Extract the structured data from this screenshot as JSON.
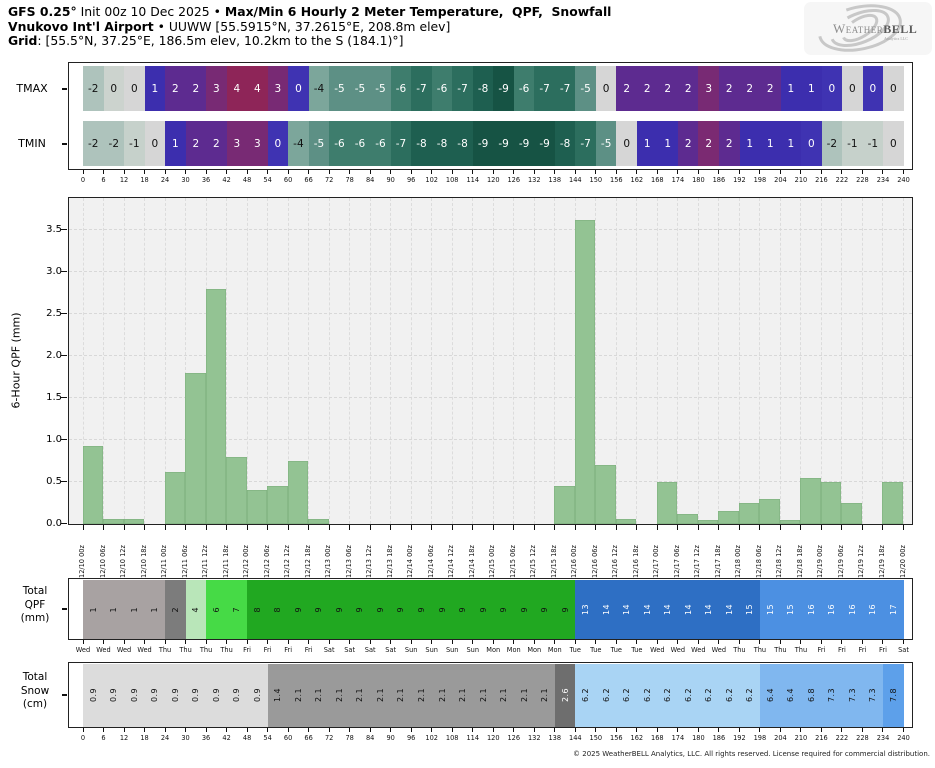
{
  "header": {
    "line1_bold": "GFS 0.25°",
    "line1_mid": " Init 00z 10 Dec 2025 • ",
    "line1_bold2": "Max/Min 6 Hourly 2 Meter Temperature,  QPF,  Snowfall",
    "line2_bold": "Vnukovo Int'l Airport",
    "line2_rest": " • UUWW [55.5915°N, 37.2615°E, 208.8m elev]",
    "line3_bold": "Grid",
    "line3_rest": ": [55.5°N, 37.25°E, 186.5m elev, 10.2km to the S (184.1)°]"
  },
  "logo": {
    "word_main": "Weather",
    "word_bold": "BELL",
    "sub": "Analytics LLC"
  },
  "temp_rows": [
    {
      "label": "TMAX",
      "values": [
        -2,
        0,
        0,
        1,
        2,
        2,
        3,
        4,
        4,
        3,
        0,
        -4,
        -5,
        -5,
        -5,
        -6,
        -7,
        -6,
        -7,
        -8,
        -9,
        -6,
        -7,
        -7,
        -5,
        0,
        2,
        2,
        2,
        2,
        3,
        2,
        2,
        2,
        1,
        1,
        0,
        0,
        0,
        0
      ],
      "colors": [
        "#aec3bc",
        "#ccd3ce",
        "#d6d6d6",
        "#3c2eae",
        "#5d2b90",
        "#5d2b90",
        "#782a74",
        "#8e2558",
        "#8e2558",
        "#782a74",
        "#3f33b2",
        "#7ca69b",
        "#5d9085",
        "#5d9085",
        "#5d9085",
        "#3e7d6d",
        "#2c6e5e",
        "#3e7d6d",
        "#2c6e5e",
        "#1e5f50",
        "#165344",
        "#3e7d6d",
        "#2c6e5e",
        "#2c6e5e",
        "#5d9085",
        "#d6d6d6",
        "#5d2b90",
        "#5d2b90",
        "#5d2b90",
        "#5d2b90",
        "#782a74",
        "#5d2b90",
        "#5d2b90",
        "#5d2b90",
        "#3c2eae",
        "#3c2eae",
        "#3f33b2",
        "#d6d6d6",
        "#3f33b2",
        "#d6d6d6"
      ],
      "text": "kkkwwwwwwwwkwwwwwwwwwwwwwkwwwwwwwwwwwkwk"
    },
    {
      "label": "TMIN",
      "values": [
        -2,
        -2,
        -1,
        0,
        1,
        2,
        2,
        3,
        3,
        0,
        -4,
        -5,
        -6,
        -6,
        -6,
        -7,
        -8,
        -8,
        -8,
        -9,
        -9,
        -9,
        -9,
        -8,
        -7,
        -5,
        0,
        1,
        1,
        2,
        2,
        2,
        1,
        1,
        1,
        0,
        -2,
        -1,
        -1,
        0
      ],
      "colors": [
        "#aec3bc",
        "#aec3bc",
        "#c6d1cb",
        "#d6d6d6",
        "#3c2eae",
        "#5d2b90",
        "#5d2b90",
        "#782a74",
        "#782a74",
        "#3f33b2",
        "#7ca69b",
        "#5d9085",
        "#3e7d6d",
        "#3e7d6d",
        "#3e7d6d",
        "#2c6e5e",
        "#1e5f50",
        "#1e5f50",
        "#1e5f50",
        "#165344",
        "#165344",
        "#165344",
        "#165344",
        "#1e5f50",
        "#2c6e5e",
        "#5d9085",
        "#d6d6d6",
        "#3c2eae",
        "#3c2eae",
        "#5d2b90",
        "#7b2a72",
        "#5d2b90",
        "#3c2eae",
        "#3c2eae",
        "#3c2eae",
        "#3f33b2",
        "#aec3bc",
        "#c6d1cb",
        "#c6d1cb",
        "#d6d6d6"
      ],
      "text": "kkkkwwwwwwkwwwwwwwwwwwwwwwkwwwwwwwwwkkkk"
    }
  ],
  "hour_ticks": [
    0,
    6,
    12,
    18,
    24,
    30,
    36,
    42,
    48,
    54,
    60,
    66,
    72,
    78,
    84,
    90,
    96,
    102,
    108,
    114,
    120,
    126,
    132,
    138,
    144,
    150,
    156,
    162,
    168,
    174,
    180,
    186,
    192,
    198,
    204,
    210,
    216,
    222,
    228,
    234,
    240
  ],
  "chart_data": {
    "type": "bar",
    "title": "GFS 0.25° Max/Min 6 Hourly 2 Meter Temperature, QPF, Snowfall — Vnukovo Int'l Airport",
    "ylabel": "6-Hour QPF (mm)",
    "bar_color": "#93c393",
    "plot_bg": "#f1f1f1",
    "ylim": [
      0,
      3.9
    ],
    "yticks": [
      "0.0",
      "0.5",
      "1.0",
      "1.5",
      "2.0",
      "2.5",
      "3.0",
      "3.5"
    ],
    "x_labels": [
      "12/10 00z",
      "12/10 06z",
      "12/10 12z",
      "12/10 18z",
      "12/11 00z",
      "12/11 06z",
      "12/11 12z",
      "12/11 18z",
      "12/12 00z",
      "12/12 06z",
      "12/12 12z",
      "12/12 18z",
      "12/13 00z",
      "12/13 06z",
      "12/13 12z",
      "12/13 18z",
      "12/14 00z",
      "12/14 06z",
      "12/14 12z",
      "12/14 18z",
      "12/15 00z",
      "12/15 06z",
      "12/15 12z",
      "12/15 18z",
      "12/16 00z",
      "12/16 06z",
      "12/16 12z",
      "12/16 18z",
      "12/17 00z",
      "12/17 06z",
      "12/17 12z",
      "12/17 18z",
      "12/18 00z",
      "12/18 06z",
      "12/18 12z",
      "12/18 18z",
      "12/19 00z",
      "12/19 06z",
      "12/19 12z",
      "12/19 18z",
      "12/20 00z"
    ],
    "values": [
      0.93,
      0.06,
      0.06,
      0,
      0.62,
      1.8,
      2.8,
      0.8,
      0.4,
      0.45,
      0.75,
      0.06,
      0,
      0,
      0,
      0,
      0,
      0,
      0,
      0,
      0,
      0,
      0,
      0.45,
      3.62,
      0.7,
      0.06,
      0,
      0.5,
      0.12,
      0.05,
      0.15,
      0.25,
      0.3,
      0.05,
      0.55,
      0.5,
      0.25,
      0,
      0.5
    ]
  },
  "qpf_total": {
    "label_lines": [
      "Total",
      "QPF",
      "(mm)"
    ],
    "values": [
      "1",
      "1",
      "1",
      "1",
      "2",
      "4",
      "6",
      "7",
      "8",
      "8",
      "9",
      "9",
      "9",
      "9",
      "9",
      "9",
      "9",
      "9",
      "9",
      "9",
      "9",
      "9",
      "9",
      "9",
      "13",
      "14",
      "14",
      "14",
      "14",
      "14",
      "14",
      "14",
      "15",
      "15",
      "15",
      "16",
      "16",
      "16",
      "16",
      "17"
    ],
    "colors": [
      "#a8a2a2",
      "#a8a2a2",
      "#a8a2a2",
      "#a8a2a2",
      "#7c7c7c",
      "#b9e6b9",
      "#46da46",
      "#46da46",
      "#21a821",
      "#21a821",
      "#21a821",
      "#21a821",
      "#21a821",
      "#21a821",
      "#21a821",
      "#21a821",
      "#21a821",
      "#21a821",
      "#21a821",
      "#21a821",
      "#21a821",
      "#21a821",
      "#21a821",
      "#21a821",
      "#2e6fc4",
      "#2e6fc4",
      "#2e6fc4",
      "#2e6fc4",
      "#2e6fc4",
      "#2e6fc4",
      "#2e6fc4",
      "#2e6fc4",
      "#2e6fc4",
      "#4c90e2",
      "#4c90e2",
      "#4c90e2",
      "#4c90e2",
      "#4c90e2",
      "#4c90e2",
      "#4c90e2"
    ],
    "text": "kkkkkkkkkkkkkkkkkkkkkkkkwwwwwwwwwwwwwwww"
  },
  "day_ticks": [
    "Wed",
    "Wed",
    "Wed",
    "Wed",
    "Thu",
    "Thu",
    "Thu",
    "Thu",
    "Fri",
    "Fri",
    "Fri",
    "Fri",
    "Sat",
    "Sat",
    "Sat",
    "Sat",
    "Sun",
    "Sun",
    "Sun",
    "Sun",
    "Mon",
    "Mon",
    "Mon",
    "Mon",
    "Tue",
    "Tue",
    "Tue",
    "Tue",
    "Wed",
    "Wed",
    "Wed",
    "Wed",
    "Thu",
    "Thu",
    "Thu",
    "Thu",
    "Fri",
    "Fri",
    "Fri",
    "Fri",
    "Sat"
  ],
  "snow_total": {
    "label_lines": [
      "Total",
      "Snow",
      "(cm)"
    ],
    "values": [
      "0.9",
      "0.9",
      "0.9",
      "0.9",
      "0.9",
      "0.9",
      "0.9",
      "0.9",
      "0.9",
      "1.4",
      "2.1",
      "2.1",
      "2.1",
      "2.1",
      "2.1",
      "2.1",
      "2.1",
      "2.1",
      "2.1",
      "2.1",
      "2.1",
      "2.1",
      "2.1",
      "2.6",
      "6.2",
      "6.2",
      "6.2",
      "6.2",
      "6.2",
      "6.2",
      "6.2",
      "6.2",
      "6.2",
      "6.4",
      "6.4",
      "6.8",
      "7.3",
      "7.3",
      "7.3",
      "7.8"
    ],
    "colors": [
      "#dcdcdc",
      "#dcdcdc",
      "#dcdcdc",
      "#dcdcdc",
      "#dcdcdc",
      "#dcdcdc",
      "#dcdcdc",
      "#dcdcdc",
      "#dcdcdc",
      "#9a9a9a",
      "#9a9a9a",
      "#9a9a9a",
      "#9a9a9a",
      "#9a9a9a",
      "#9a9a9a",
      "#9a9a9a",
      "#9a9a9a",
      "#9a9a9a",
      "#9a9a9a",
      "#9a9a9a",
      "#9a9a9a",
      "#9a9a9a",
      "#9a9a9a",
      "#6e6e6e",
      "#a9d4f4",
      "#a9d4f4",
      "#a9d4f4",
      "#a9d4f4",
      "#a9d4f4",
      "#a9d4f4",
      "#a9d4f4",
      "#a9d4f4",
      "#a9d4f4",
      "#80b7ef",
      "#80b7ef",
      "#80b7ef",
      "#80b7ef",
      "#80b7ef",
      "#80b7ef",
      "#5da0ea"
    ],
    "text": "kkkkkkkkkkkkkkkkkkkkkkkwkkkkkkkkkkkkkkkk"
  },
  "footer": "© 2025 WeatherBELL Analytics, LLC. All rights reserved. License required for commercial distribution."
}
